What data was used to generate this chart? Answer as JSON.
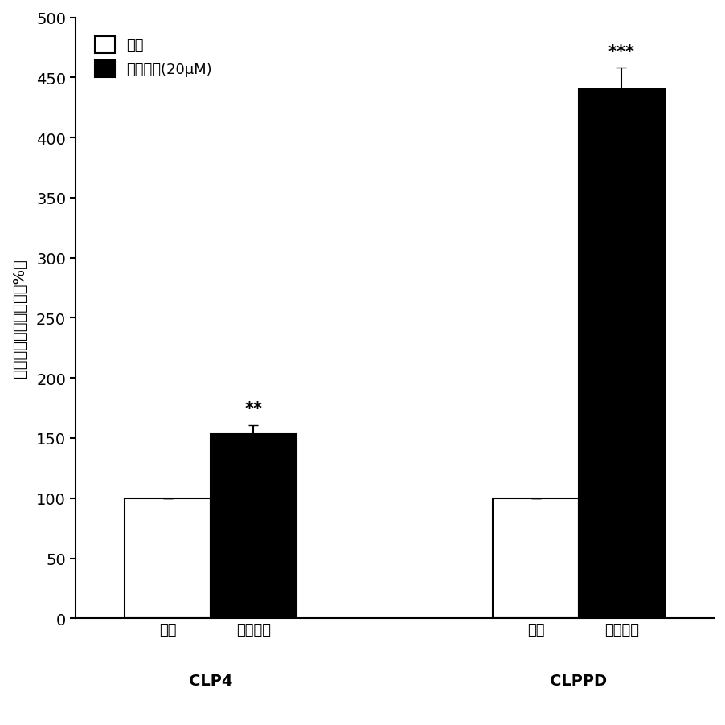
{
  "groups": [
    "CLP4",
    "CLPPD"
  ],
  "control_values": [
    100,
    100
  ],
  "treatment_values": [
    153,
    440
  ],
  "control_errors": [
    0,
    0
  ],
  "treatment_errors": [
    8,
    18
  ],
  "ylabel": "荚光素酶活性的激活（%）",
  "legend_control": "对照",
  "legend_treatment": "罗格列酷(20μM)",
  "xtick_labels": [
    "对照",
    "罗格列酷",
    "对照",
    "罗格列酷"
  ],
  "group_labels": [
    "CLP4",
    "CLPPD"
  ],
  "significance_clp4": "**",
  "significance_clppd": "***",
  "ylim": [
    0,
    500
  ],
  "yticks": [
    0,
    50,
    100,
    150,
    200,
    250,
    300,
    350,
    400,
    450,
    500
  ],
  "bar_width": 0.35,
  "control_color": "#ffffff",
  "treatment_color": "#000000",
  "edge_color": "#000000",
  "background_color": "#ffffff"
}
